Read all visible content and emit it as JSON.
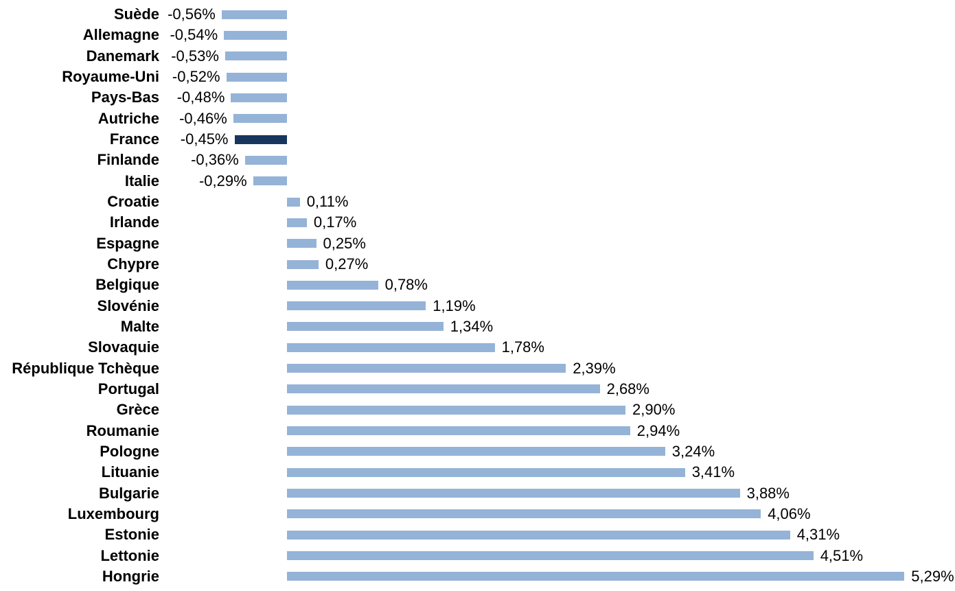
{
  "chart_data": {
    "type": "bar",
    "orientation": "horizontal",
    "title": "",
    "unit": "%",
    "decimal_separator": ",",
    "grid": false,
    "legend": false,
    "axis_lines_visible": false,
    "data_label_position": "outside-end",
    "xlim": [
      -0.56,
      5.29
    ],
    "categories": [
      "Suède",
      "Allemagne",
      "Danemark",
      "Royaume-Uni",
      "Pays-Bas",
      "Autriche",
      "France",
      "Finlande",
      "Italie",
      "Croatie",
      "Irlande",
      "Espagne",
      "Chypre",
      "Belgique",
      "Slovénie",
      "Malte",
      "Slovaquie",
      "République Tchèque",
      "Portugal",
      "Grèce",
      "Roumanie",
      "Pologne",
      "Lituanie",
      "Bulgarie",
      "Luxembourg",
      "Estonie",
      "Lettonie",
      "Hongrie"
    ],
    "values": [
      -0.56,
      -0.54,
      -0.53,
      -0.52,
      -0.48,
      -0.46,
      -0.45,
      -0.36,
      -0.29,
      0.11,
      0.17,
      0.25,
      0.27,
      0.78,
      1.19,
      1.34,
      1.78,
      2.39,
      2.68,
      2.9,
      2.94,
      3.24,
      3.41,
      3.88,
      4.06,
      4.31,
      4.51,
      5.29
    ],
    "value_labels": [
      "-0,56%",
      "-0,54%",
      "-0,53%",
      "-0,52%",
      "-0,48%",
      "-0,46%",
      "-0,45%",
      "-0,36%",
      "-0,29%",
      "0,11%",
      "0,17%",
      "0,25%",
      "0,27%",
      "0,78%",
      "1,19%",
      "1,34%",
      "1,78%",
      "2,39%",
      "2,68%",
      "2,90%",
      "2,94%",
      "3,24%",
      "3,41%",
      "3,88%",
      "4,06%",
      "4,31%",
      "4,51%",
      "5,29%"
    ],
    "highlight_index": 6,
    "highlight_category": "France",
    "colors": {
      "bar": "#95B3D7",
      "highlight_bar": "#17365D",
      "label_text": "#000000",
      "background": "#FFFFFF"
    }
  }
}
